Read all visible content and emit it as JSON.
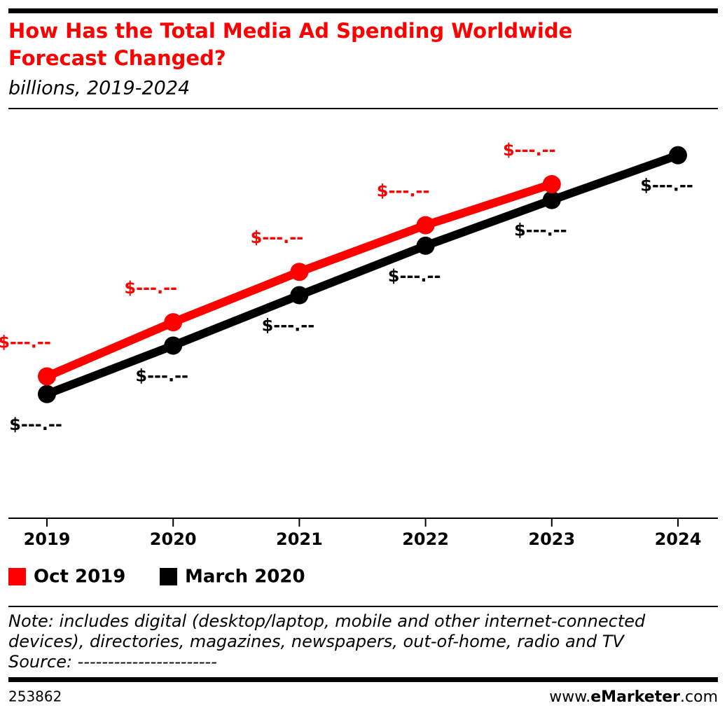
{
  "chart_data": {
    "type": "line",
    "title": [
      "How Has the Total Media Ad Spending Worldwide",
      "Forecast Changed?"
    ],
    "subtitle": "billions, 2019-2024",
    "categories": [
      "2019",
      "2020",
      "2021",
      "2022",
      "2023",
      "2024"
    ],
    "ylim": [
      400,
      800
    ],
    "series": [
      {
        "name": "Oct 2019",
        "color": "#ff0000",
        "values": [
          552,
          610,
          664,
          714,
          758,
          null
        ],
        "value_labels": [
          "$---.--",
          "$---.--",
          "$---.--",
          "$---.--",
          "$---.--",
          null
        ]
      },
      {
        "name": "March 2020",
        "color": "#000000",
        "values": [
          533,
          585,
          639,
          692,
          741,
          789
        ],
        "value_labels": [
          "$---.--",
          "$---.--",
          "$---.--",
          "$---.--",
          "$---.--",
          "$---.--"
        ]
      }
    ],
    "note": [
      "Note: includes digital (desktop/laptop, mobile and other internet-connected",
      "devices), directories, magazines, newspapers, out-of-home, radio and TV"
    ],
    "source": "Source: -----------------------",
    "chart_id": "253862",
    "brand": [
      "www.",
      "eMarketer",
      ".com"
    ]
  }
}
